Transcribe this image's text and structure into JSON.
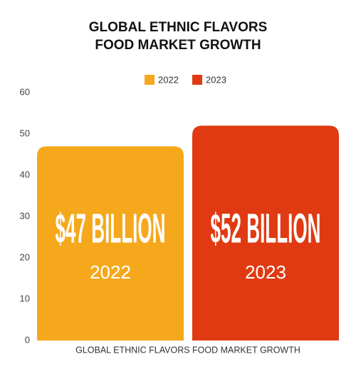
{
  "chart_data": {
    "type": "bar",
    "title": "GLOBAL ETHNIC FLAVORS FOOD MARKET GROWTH",
    "categories": [
      "GLOBAL ETHNIC FLAVORS FOOD MARKET GROWTH"
    ],
    "series": [
      {
        "name": "2022",
        "color": "#F5A81C",
        "values": [
          47
        ],
        "value_labels": [
          "$47 BILLION"
        ]
      },
      {
        "name": "2023",
        "color": "#E03A12",
        "values": [
          52
        ],
        "value_labels": [
          "$52 BILLION"
        ]
      }
    ],
    "ylim": [
      0,
      60
    ],
    "yticks": [
      0,
      10,
      20,
      30,
      40,
      50,
      60
    ],
    "grid": false,
    "legend": "top"
  }
}
